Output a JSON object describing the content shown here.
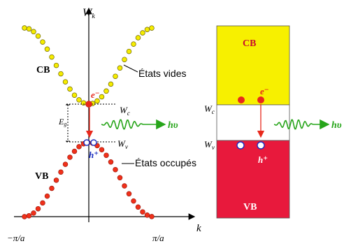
{
  "band_diagram": {
    "axis_y_label": "W",
    "axis_y_label_sub": "k",
    "axis_x_label": "k",
    "tick_left": "−π/a",
    "tick_right": "π/a",
    "conduction_band_label": "CB",
    "valence_band_label": "VB",
    "empty_states_label": "États vides",
    "occupied_states_label": "États occupés",
    "electron_label": "e⁻",
    "hole_label": "h⁺",
    "wc_label": "W",
    "wc_sub": "c",
    "wv_label": "W",
    "wv_sub": "v",
    "gap_label": "E",
    "gap_sub": "g",
    "photon_label": "hυ"
  },
  "energy_levels": {
    "cb_label": "CB",
    "vb_label": "VB",
    "wc_label": "W",
    "wc_sub": "c",
    "wv_label": "W",
    "wv_sub": "v",
    "electron_label": "e⁻",
    "hole_label": "h⁺",
    "photon_label": "hυ"
  },
  "colors": {
    "conduction": "#f7f000",
    "valence": "#e8193c",
    "electron": "#e8291c",
    "photon": "#27a51a",
    "hole": "#1a2dbf",
    "dots_cb": "#f5ec00",
    "dots_vb": "#f0301a"
  }
}
